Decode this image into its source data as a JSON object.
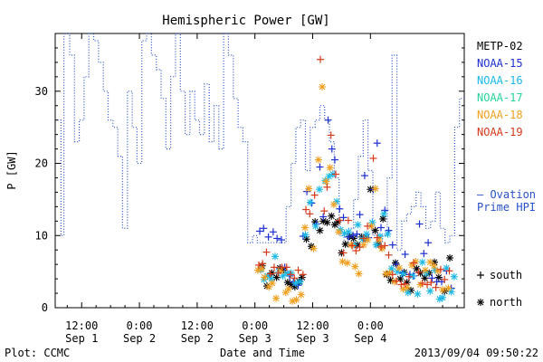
{
  "chart_data": {
    "type": "scatter",
    "title": "Hemispheric Power [GW]",
    "xlabel": "Date and Time",
    "ylabel": "P [GW]",
    "footer_left": "Plot: CCMC",
    "footer_right": "2013/09/04 09:50:22",
    "xlim_hours": [
      6.5,
      91.5
    ],
    "ylim": [
      0,
      38
    ],
    "yticks": [
      0,
      10,
      20,
      30
    ],
    "xticks": [
      {
        "hours": 12,
        "time": "12:00",
        "date": "Sep 1"
      },
      {
        "hours": 24,
        "time": "0:00",
        "date": "Sep 2"
      },
      {
        "hours": 36,
        "time": "12:00",
        "date": "Sep 2"
      },
      {
        "hours": 48,
        "time": "0:00",
        "date": "Sep 3"
      },
      {
        "hours": 60,
        "time": "12:00",
        "date": "Sep 3"
      },
      {
        "hours": 72,
        "time": "0:00",
        "date": "Sep 4"
      }
    ],
    "legend": [
      {
        "name": "METP-02",
        "color": "#000000"
      },
      {
        "name": "NOAA-15",
        "color": "#1c2fd1"
      },
      {
        "name": "NOAA-16",
        "color": "#1ab8e6"
      },
      {
        "name": "NOAA-17",
        "color": "#27d39a"
      },
      {
        "name": "NOAA-18",
        "color": "#f0a020"
      },
      {
        "name": "NOAA-19",
        "color": "#d63a1a"
      }
    ],
    "ovation_label_line1": "— Ovation",
    "ovation_label_line2": "Prime HPI",
    "marker_legend": [
      {
        "symbol": "+",
        "label": "south"
      },
      {
        "symbol": "*",
        "label": "north"
      }
    ],
    "ovation": {
      "name": "Ovation Prime HPI",
      "color": "#2850c8",
      "x": [
        7,
        7.7,
        8.3,
        9.5,
        10.5,
        11.5,
        12.5,
        13.5,
        14.5,
        15.5,
        16.5,
        17.5,
        18.5,
        19.5,
        20.5,
        21.5,
        22.5,
        23.5,
        24.5,
        25.5,
        26.5,
        27.5,
        28.5,
        29.5,
        30.5,
        31.5,
        32.5,
        33.5,
        34.5,
        35.5,
        36.5,
        37.5,
        38.5,
        39.5,
        40.5,
        41.5,
        42.5,
        43.5,
        44.5,
        45.5,
        46.5,
        47.5,
        48.5,
        49.5,
        50.5,
        51.5,
        52.5,
        53.5,
        54.5,
        55.5,
        56.5,
        57.5,
        58.5,
        59.5,
        60.5,
        61.5,
        62.5,
        63.5,
        64.5,
        65.5,
        66.5,
        67.5,
        68.5,
        69.5,
        70.5,
        71.5,
        72.5,
        73.5,
        74.5,
        75.5,
        76.5,
        77.5,
        78.5,
        79.5,
        80.5,
        81.5,
        82.5,
        83.5,
        84.5,
        85.5,
        86.5,
        87.5,
        88.5,
        89.5,
        90.5
      ],
      "y": [
        26,
        10,
        38,
        35,
        23,
        26,
        32,
        38,
        37,
        34,
        30,
        26,
        25,
        21,
        11,
        30,
        25,
        20,
        37,
        38,
        35,
        33,
        29,
        22,
        32,
        38,
        30,
        24,
        30,
        26,
        24,
        31,
        23,
        28,
        22,
        38,
        35,
        29,
        25,
        23,
        9,
        10,
        9,
        9,
        9,
        9,
        9,
        9,
        14,
        20,
        25,
        26,
        19,
        25,
        26,
        28,
        26,
        23,
        18,
        10,
        9,
        11,
        15,
        21,
        26,
        19,
        10,
        9,
        10,
        18,
        35,
        8,
        12,
        13,
        14,
        16,
        14,
        11,
        12,
        16,
        11,
        9,
        10,
        25,
        29
      ]
    },
    "series": [
      {
        "name": "METP-02",
        "color": "#000000",
        "marker": "*",
        "points": [
          [
            49.5,
            5.8
          ],
          [
            50.5,
            3.0
          ],
          [
            51.5,
            4.8
          ],
          [
            52.5,
            4.2
          ],
          [
            53.2,
            5.5
          ],
          [
            54.0,
            5.2
          ],
          [
            54.8,
            3.5
          ],
          [
            55.6,
            3.2
          ],
          [
            56.3,
            2.9
          ],
          [
            57.2,
            3.6
          ],
          [
            57.8,
            4.2
          ],
          [
            58.7,
            9.5
          ],
          [
            59.7,
            8.5
          ],
          [
            60.5,
            11.9
          ],
          [
            61.5,
            10.7
          ],
          [
            62.2,
            12.0
          ],
          [
            63.0,
            11.8
          ],
          [
            63.9,
            12.7
          ],
          [
            64.6,
            11.5
          ],
          [
            65.2,
            11.9
          ],
          [
            66.0,
            7.6
          ],
          [
            66.8,
            8.8
          ],
          [
            67.7,
            9.9
          ],
          [
            68.5,
            9.6
          ],
          [
            69.3,
            8.7
          ],
          [
            70.2,
            9.8
          ],
          [
            71.0,
            9.6
          ],
          [
            72.0,
            16.4
          ],
          [
            73.0,
            10.7
          ],
          [
            73.6,
            8.8
          ],
          [
            74.6,
            12.3
          ],
          [
            75.4,
            4.6
          ],
          [
            76.2,
            3.8
          ],
          [
            77.2,
            6.2
          ],
          [
            78.2,
            4.0
          ],
          [
            79.0,
            4.9
          ],
          [
            79.6,
            3.5
          ],
          [
            80.4,
            2.4
          ],
          [
            81.6,
            5.4
          ],
          [
            82.4,
            4.8
          ],
          [
            83.3,
            4.1
          ],
          [
            84.2,
            4.8
          ],
          [
            85.3,
            6.3
          ],
          [
            86.2,
            4.2
          ],
          [
            87.4,
            2.3
          ],
          [
            88.5,
            6.9
          ]
        ]
      },
      {
        "name": "NOAA-15",
        "color": "#1c2fd1",
        "marker": "+",
        "points": [
          [
            49.0,
            10.6
          ],
          [
            49.8,
            11.0
          ],
          [
            50.8,
            9.8
          ],
          [
            51.8,
            10.5
          ],
          [
            52.6,
            9.6
          ],
          [
            53.5,
            9.4
          ],
          [
            54.2,
            5.6
          ],
          [
            55.2,
            4.4
          ],
          [
            56.0,
            3.6
          ],
          [
            57.0,
            3.1
          ],
          [
            58.0,
            9.9
          ],
          [
            58.8,
            16.1
          ],
          [
            59.8,
            14.5
          ],
          [
            60.8,
            11.6
          ],
          [
            61.5,
            19.5
          ],
          [
            62.2,
            12.6
          ],
          [
            63.2,
            26.0
          ],
          [
            64.0,
            22.0
          ],
          [
            64.6,
            20.5
          ],
          [
            65.6,
            13.7
          ],
          [
            66.4,
            12.5
          ],
          [
            67.4,
            9.8
          ],
          [
            68.4,
            10.0
          ],
          [
            69.2,
            10.2
          ],
          [
            69.8,
            12.9
          ],
          [
            70.8,
            18.3
          ],
          [
            71.6,
            9.7
          ],
          [
            72.6,
            16.4
          ],
          [
            73.4,
            22.8
          ],
          [
            74.2,
            11.1
          ],
          [
            75.0,
            13.5
          ],
          [
            75.8,
            10.7
          ],
          [
            76.6,
            8.7
          ],
          [
            77.4,
            6.0
          ],
          [
            78.6,
            4.8
          ],
          [
            79.2,
            7.4
          ],
          [
            80.2,
            4.6
          ],
          [
            81.0,
            4.4
          ],
          [
            82.2,
            11.6
          ],
          [
            83.1,
            7.5
          ],
          [
            84.0,
            9.0
          ],
          [
            84.8,
            4.1
          ],
          [
            85.8,
            3.6
          ],
          [
            86.8,
            3.6
          ],
          [
            87.8,
            5.1
          ],
          [
            88.8,
            2.7
          ]
        ]
      },
      {
        "name": "NOAA-16",
        "color": "#1ab8e6",
        "marker": "*",
        "points": [
          [
            49.2,
            5.3
          ],
          [
            49.9,
            3.9
          ],
          [
            50.6,
            4.4
          ],
          [
            51.4,
            4.0
          ],
          [
            52.2,
            7.1
          ],
          [
            53.0,
            5.0
          ],
          [
            53.8,
            4.4
          ],
          [
            54.7,
            4.8
          ],
          [
            55.5,
            4.8
          ],
          [
            56.4,
            3.4
          ],
          [
            57.4,
            3.6
          ],
          [
            58.5,
            10.1
          ],
          [
            59.5,
            14.6
          ],
          [
            60.6,
            11.3
          ],
          [
            61.4,
            16.4
          ],
          [
            62.6,
            17.6
          ],
          [
            63.4,
            18.2
          ],
          [
            64.2,
            18.5
          ],
          [
            65.0,
            14.7
          ],
          [
            65.8,
            10.8
          ],
          [
            66.6,
            10.3
          ],
          [
            67.5,
            10.5
          ],
          [
            68.6,
            8.7
          ],
          [
            69.4,
            11.5
          ],
          [
            70.4,
            9.5
          ],
          [
            71.2,
            10.2
          ],
          [
            72.4,
            11.8
          ],
          [
            73.2,
            8.7
          ],
          [
            74.0,
            9.9
          ],
          [
            74.8,
            13.0
          ],
          [
            75.6,
            10.2
          ],
          [
            76.4,
            5.4
          ],
          [
            77.6,
            5.0
          ],
          [
            78.8,
            4.7
          ],
          [
            79.8,
            2.1
          ],
          [
            80.8,
            4.4
          ],
          [
            81.8,
            1.9
          ],
          [
            82.8,
            6.3
          ],
          [
            83.6,
            4.8
          ],
          [
            84.4,
            2.3
          ],
          [
            85.4,
            5.2
          ],
          [
            86.4,
            1.2
          ],
          [
            87.0,
            1.4
          ],
          [
            87.8,
            5.5
          ],
          [
            88.8,
            2.2
          ],
          [
            89.4,
            4.3
          ]
        ]
      },
      {
        "name": "NOAA-18",
        "color": "#f0a020",
        "marker": "*",
        "points": [
          [
            48.6,
            5.2
          ],
          [
            49.4,
            5.4
          ],
          [
            50.0,
            4.2
          ],
          [
            50.9,
            2.9
          ],
          [
            51.6,
            3.4
          ],
          [
            52.4,
            1.3
          ],
          [
            53.4,
            5.1
          ],
          [
            54.4,
            2.1
          ],
          [
            55.0,
            2.6
          ],
          [
            55.8,
            0.9
          ],
          [
            56.6,
            1.1
          ],
          [
            57.6,
            1.8
          ],
          [
            58.4,
            11.1
          ],
          [
            59.2,
            16.5
          ],
          [
            60.2,
            8.2
          ],
          [
            61.2,
            20.5
          ],
          [
            62.0,
            30.6
          ],
          [
            62.8,
            17.5
          ],
          [
            63.6,
            19.4
          ],
          [
            64.4,
            14.3
          ],
          [
            65.4,
            10.5
          ],
          [
            66.2,
            6.4
          ],
          [
            67.2,
            6.2
          ],
          [
            68.0,
            8.7
          ],
          [
            68.8,
            5.7
          ],
          [
            69.6,
            4.7
          ],
          [
            70.6,
            8.7
          ],
          [
            71.4,
            9.4
          ],
          [
            72.2,
            11.3
          ],
          [
            73.0,
            16.5
          ],
          [
            73.8,
            9.4
          ],
          [
            74.4,
            8.2
          ],
          [
            75.2,
            4.7
          ],
          [
            76.0,
            4.8
          ],
          [
            77.0,
            3.6
          ],
          [
            78.0,
            5.5
          ],
          [
            78.8,
            2.6
          ],
          [
            79.6,
            2.8
          ],
          [
            80.6,
            5.9
          ],
          [
            81.4,
            6.4
          ],
          [
            82.4,
            3.2
          ],
          [
            83.4,
            5.2
          ],
          [
            84.4,
            6.3
          ],
          [
            85.2,
            5.8
          ],
          [
            86.0,
            5.1
          ],
          [
            87.0,
            2.5
          ],
          [
            88.2,
            2.7
          ]
        ]
      },
      {
        "name": "NOAA-19",
        "color": "#d63a1a",
        "marker": "+",
        "points": [
          [
            48.8,
            5.9
          ],
          [
            49.6,
            6.1
          ],
          [
            50.4,
            7.7
          ],
          [
            51.2,
            4.7
          ],
          [
            52.0,
            5.6
          ],
          [
            52.8,
            4.8
          ],
          [
            53.6,
            5.6
          ],
          [
            54.6,
            5.6
          ],
          [
            55.4,
            4.6
          ],
          [
            56.2,
            4.1
          ],
          [
            57.0,
            5.2
          ],
          [
            58.0,
            4.6
          ],
          [
            58.6,
            13.6
          ],
          [
            59.4,
            13.0
          ],
          [
            60.4,
            15.6
          ],
          [
            61.6,
            34.4
          ],
          [
            62.4,
            13.4
          ],
          [
            63.0,
            16.7
          ],
          [
            63.8,
            23.9
          ],
          [
            64.8,
            18.5
          ],
          [
            65.6,
            12.1
          ],
          [
            66.4,
            7.6
          ],
          [
            67.4,
            12.1
          ],
          [
            68.2,
            8.6
          ],
          [
            69.0,
            7.9
          ],
          [
            69.8,
            8.4
          ],
          [
            70.6,
            9.6
          ],
          [
            71.4,
            11.3
          ],
          [
            72.6,
            20.7
          ],
          [
            73.4,
            9.7
          ],
          [
            74.2,
            8.4
          ],
          [
            75.0,
            8.6
          ],
          [
            75.8,
            7.3
          ],
          [
            76.6,
            4.6
          ],
          [
            77.4,
            3.7
          ],
          [
            78.4,
            3.2
          ],
          [
            79.2,
            3.3
          ],
          [
            80.0,
            4.3
          ],
          [
            81.0,
            6.2
          ],
          [
            82.0,
            4.9
          ],
          [
            82.8,
            3.4
          ],
          [
            83.8,
            3.2
          ],
          [
            84.6,
            3.5
          ],
          [
            85.6,
            2.8
          ],
          [
            86.6,
            5.3
          ],
          [
            87.4,
            3.9
          ],
          [
            88.4,
            5.1
          ]
        ]
      }
    ]
  }
}
